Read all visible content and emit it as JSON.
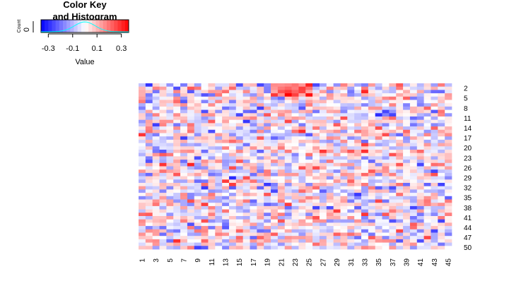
{
  "chart_data": {
    "type": "heatmap",
    "color_key": {
      "title_line1": "Color Key",
      "title_line2": "and Histogram",
      "xlabel": "Value",
      "ylabel": "Count",
      "ytick": "0",
      "xticks": [
        "-0.3",
        "-0.1",
        "0.1",
        "0.3"
      ],
      "xtick_values": [
        -0.3,
        -0.1,
        0.1,
        0.3
      ],
      "range": [
        -0.36,
        0.36
      ],
      "colors": {
        "low": "#0000ff",
        "mid": "#ffffff",
        "high": "#ff0000",
        "histogram": "#00ffff"
      }
    },
    "n_columns": 45,
    "n_rows": 50,
    "column_labels": [
      "1",
      "3",
      "5",
      "7",
      "9",
      "11",
      "13",
      "15",
      "17",
      "19",
      "21",
      "23",
      "25",
      "27",
      "29",
      "31",
      "33",
      "35",
      "37",
      "39",
      "41",
      "43",
      "45"
    ],
    "row_labels": [
      "2",
      "5",
      "8",
      "11",
      "14",
      "17",
      "20",
      "23",
      "26",
      "29",
      "32",
      "35",
      "38",
      "41",
      "44",
      "47",
      "50"
    ],
    "value_range": [
      -0.36,
      0.36
    ]
  }
}
